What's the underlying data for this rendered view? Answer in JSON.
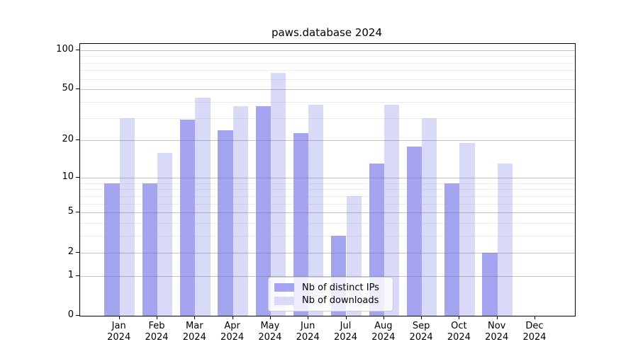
{
  "title": "paws.database 2024",
  "legend": {
    "items": [
      {
        "label": "Nb of distinct IPs",
        "color": "#a4a4f0"
      },
      {
        "label": "Nb of downloads",
        "color": "#d9d9f8"
      }
    ]
  },
  "y_axis": {
    "tick_labels": [
      "100",
      "50",
      "20",
      "10",
      "5",
      "2",
      "1",
      "0"
    ]
  },
  "x_axis": {
    "year": "2024"
  },
  "chart_data": {
    "type": "bar",
    "title": "paws.database 2024",
    "categories": [
      "Jan",
      "Feb",
      "Mar",
      "Apr",
      "May",
      "Jun",
      "Jul",
      "Aug",
      "Sep",
      "Oct",
      "Nov",
      "Dec"
    ],
    "x_tick_year": "2024",
    "series": [
      {
        "name": "Nb of distinct IPs",
        "color": "#a4a4f0",
        "values": [
          9,
          9,
          29,
          24,
          37,
          23,
          3,
          13,
          18,
          9,
          2,
          0
        ]
      },
      {
        "name": "Nb of downloads",
        "color": "#d9d9f8",
        "values": [
          30,
          16,
          43,
          37,
          67,
          38,
          7,
          38,
          30,
          19,
          13,
          0
        ]
      }
    ],
    "y_scale": "log1p",
    "ylim": [
      0,
      111
    ],
    "y_ticks_major": [
      0,
      1,
      2,
      5,
      10,
      20,
      50,
      100
    ],
    "y_ticks_minor": [
      3,
      4,
      6,
      7,
      8,
      9,
      30,
      40,
      60,
      70,
      80,
      90
    ],
    "grid": "horizontal",
    "legend_position": "bottom-center"
  }
}
